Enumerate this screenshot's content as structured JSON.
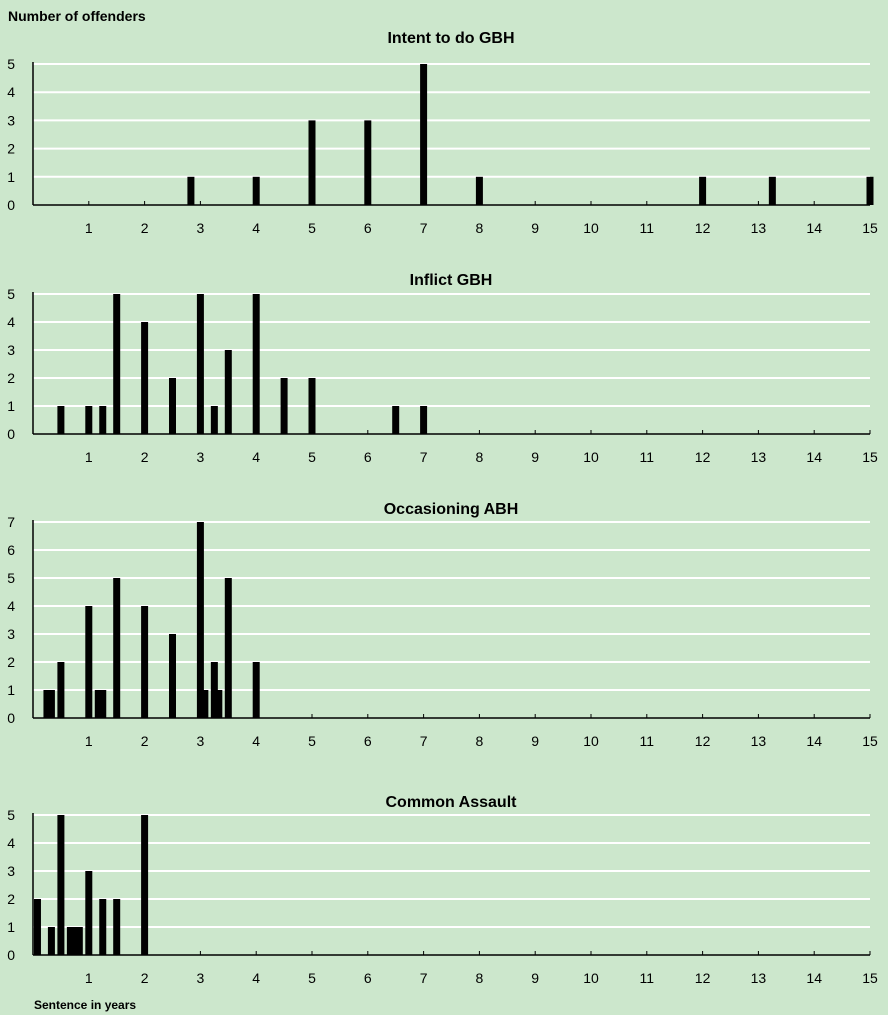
{
  "figure": {
    "y_axis_label": "Number of offenders",
    "x_axis_label": "Sentence in years",
    "colors": {
      "background": "#cce7cc",
      "bar": "#000000",
      "gridline": "#ffffff",
      "axis": "#000000"
    }
  },
  "chart_data": [
    {
      "type": "bar",
      "title": "Intent to do GBH",
      "xlabel": "Sentence in years",
      "ylabel": "Number of offenders",
      "xlim": [
        0,
        15
      ],
      "ylim": [
        0,
        5
      ],
      "x_ticks": [
        1,
        2,
        3,
        4,
        5,
        6,
        7,
        8,
        9,
        10,
        11,
        12,
        13,
        14,
        15
      ],
      "y_ticks": [
        0,
        1,
        2,
        3,
        4,
        5
      ],
      "grid": true,
      "points": [
        {
          "x": 2.83,
          "y": 1
        },
        {
          "x": 4,
          "y": 1
        },
        {
          "x": 5,
          "y": 3
        },
        {
          "x": 6,
          "y": 3
        },
        {
          "x": 7,
          "y": 5
        },
        {
          "x": 8,
          "y": 1
        },
        {
          "x": 12,
          "y": 1
        },
        {
          "x": 13.25,
          "y": 1
        },
        {
          "x": 15,
          "y": 1
        }
      ]
    },
    {
      "type": "bar",
      "title": "Inflict GBH",
      "xlabel": "Sentence in years",
      "ylabel": "Number of offenders",
      "xlim": [
        0,
        15
      ],
      "ylim": [
        0,
        5
      ],
      "x_ticks": [
        1,
        2,
        3,
        4,
        5,
        6,
        7,
        8,
        9,
        10,
        11,
        12,
        13,
        14,
        15
      ],
      "y_ticks": [
        0,
        1,
        2,
        3,
        4,
        5
      ],
      "grid": true,
      "points": [
        {
          "x": 0.5,
          "y": 1
        },
        {
          "x": 1,
          "y": 1
        },
        {
          "x": 1.25,
          "y": 1
        },
        {
          "x": 1.5,
          "y": 5
        },
        {
          "x": 2,
          "y": 4
        },
        {
          "x": 2.5,
          "y": 2
        },
        {
          "x": 3,
          "y": 5
        },
        {
          "x": 3.25,
          "y": 1
        },
        {
          "x": 3.5,
          "y": 3
        },
        {
          "x": 4,
          "y": 5
        },
        {
          "x": 4.5,
          "y": 2
        },
        {
          "x": 5,
          "y": 2
        },
        {
          "x": 6.5,
          "y": 1
        },
        {
          "x": 7,
          "y": 1
        }
      ]
    },
    {
      "type": "bar",
      "title": "Occasioning ABH",
      "xlabel": "Sentence in years",
      "ylabel": "Number of offenders",
      "xlim": [
        0,
        15
      ],
      "ylim": [
        0,
        7
      ],
      "x_ticks": [
        1,
        2,
        3,
        4,
        5,
        6,
        7,
        8,
        9,
        10,
        11,
        12,
        13,
        14,
        15
      ],
      "y_ticks": [
        0,
        1,
        2,
        3,
        4,
        5,
        6,
        7
      ],
      "grid": true,
      "points": [
        {
          "x": 0.25,
          "y": 1
        },
        {
          "x": 0.33,
          "y": 1
        },
        {
          "x": 0.5,
          "y": 2
        },
        {
          "x": 1,
          "y": 4
        },
        {
          "x": 1.17,
          "y": 1
        },
        {
          "x": 1.25,
          "y": 1
        },
        {
          "x": 1.5,
          "y": 5
        },
        {
          "x": 2,
          "y": 4
        },
        {
          "x": 2.5,
          "y": 3
        },
        {
          "x": 3,
          "y": 7
        },
        {
          "x": 3.08,
          "y": 1
        },
        {
          "x": 3.25,
          "y": 2
        },
        {
          "x": 3.33,
          "y": 1
        },
        {
          "x": 3.5,
          "y": 5
        },
        {
          "x": 4,
          "y": 2
        }
      ]
    },
    {
      "type": "bar",
      "title": "Common Assault",
      "xlabel": "Sentence in years",
      "ylabel": "Number of offenders",
      "xlim": [
        0,
        15
      ],
      "ylim": [
        0,
        5
      ],
      "x_ticks": [
        1,
        2,
        3,
        4,
        5,
        6,
        7,
        8,
        9,
        10,
        11,
        12,
        13,
        14,
        15
      ],
      "y_ticks": [
        0,
        1,
        2,
        3,
        4,
        5
      ],
      "grid": true,
      "points": [
        {
          "x": 0.08,
          "y": 2
        },
        {
          "x": 0.33,
          "y": 1
        },
        {
          "x": 0.5,
          "y": 5
        },
        {
          "x": 0.67,
          "y": 1
        },
        {
          "x": 0.75,
          "y": 1
        },
        {
          "x": 0.83,
          "y": 1
        },
        {
          "x": 1,
          "y": 3
        },
        {
          "x": 1.25,
          "y": 2
        },
        {
          "x": 1.5,
          "y": 2
        },
        {
          "x": 2,
          "y": 5
        }
      ]
    }
  ]
}
